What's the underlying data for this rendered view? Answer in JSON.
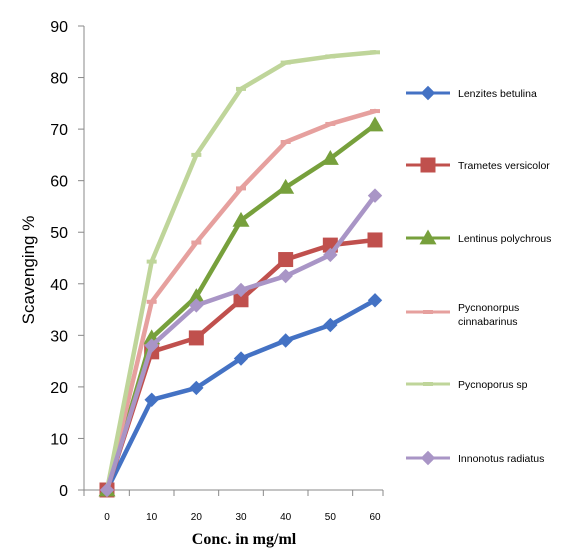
{
  "chart_data": {
    "type": "line",
    "title": "",
    "xlabel": "Conc. in mg/ml",
    "ylabel": "Scavenging %",
    "x": [
      0,
      10,
      20,
      30,
      40,
      50,
      60
    ],
    "xlim": [
      0,
      60
    ],
    "ylim": [
      0,
      90
    ],
    "yticks": [
      0,
      10,
      20,
      30,
      40,
      50,
      60,
      70,
      80,
      90
    ],
    "grid": false,
    "legend_position": "right",
    "series": [
      {
        "name": "Lenzites betulina",
        "color": "#4472C4",
        "marker": "diamond",
        "values": [
          0,
          17.5,
          19.8,
          25.5,
          29,
          32,
          36.8
        ]
      },
      {
        "name": "Trametes versicolor",
        "color": "#C0504D",
        "marker": "square",
        "values": [
          0,
          26.8,
          29.5,
          36.9,
          44.7,
          47.5,
          48.5
        ]
      },
      {
        "name": "Lentinus polychrous",
        "color": "#77A03C",
        "marker": "triangle",
        "values": [
          0,
          29.5,
          37.5,
          52.3,
          58.7,
          64.3,
          70.8
        ]
      },
      {
        "name": "Pycnonorpus cinnabarinus",
        "name_lines": [
          "Pycnonorpus",
          "cinnabarinus"
        ],
        "color": "#E6A09E",
        "marker": "dash",
        "values": [
          0,
          36.5,
          48,
          58.5,
          67.5,
          71,
          73.5
        ]
      },
      {
        "name": "Pycnoporus sp",
        "color": "#BFD59A",
        "marker": "dash",
        "values": [
          0,
          44.3,
          65,
          77.8,
          82.9,
          84.1,
          84.9
        ]
      },
      {
        "name": "Innonotus radiatus",
        "color": "#A995C6",
        "marker": "diamond",
        "values": [
          0,
          28,
          35.8,
          38.8,
          41.5,
          45.6,
          57.1
        ]
      }
    ]
  }
}
